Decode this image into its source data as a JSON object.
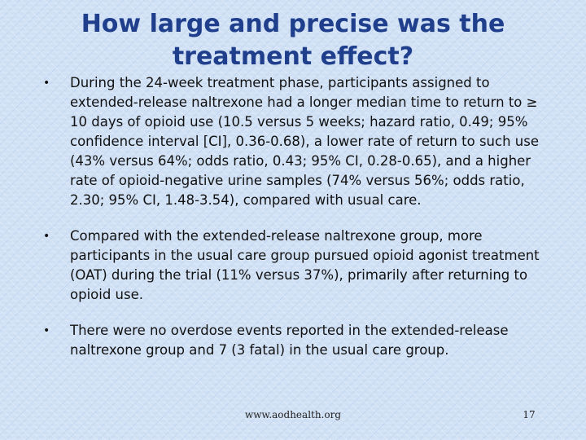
{
  "slide": {
    "title": "How large and precise was the treatment effect?",
    "bullet_marker": "•",
    "bullets": [
      "During the 24-week treatment phase, participants assigned to extended-release naltrexone had a longer median time to return to ≥ 10 days of opioid use (10.5 versus 5 weeks; hazard ratio, 0.49; 95% confidence interval [CI], 0.36-0.68), a lower rate of return to such use (43% versus 64%; odds ratio, 0.43; 95% CI, 0.28-0.65), and a higher rate of opioid-negative urine samples (74% versus 56%; odds ratio, 2.30; 95% CI, 1.48-3.54), compared with usual care.",
      "Compared with the extended-release naltrexone group, more participants in the usual care group pursued opioid agonist treatment (OAT) during the trial (11% versus 37%), primarily after returning to opioid use.",
      "There were no overdose events reported in the extended-release naltrexone group and 7 (3 fatal) in the usual care group."
    ]
  },
  "footer": {
    "url": "www.aodhealth.org",
    "page_number": "17"
  }
}
